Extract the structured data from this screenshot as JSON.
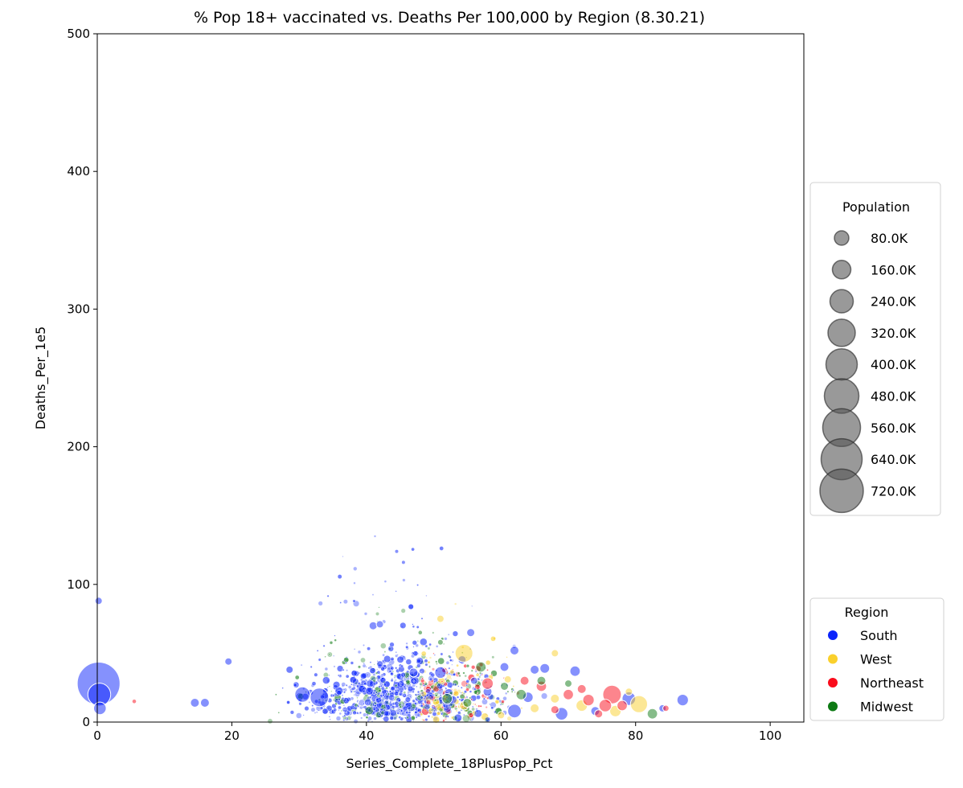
{
  "chart_data": {
    "type": "scatter",
    "title": "% Pop 18+ vaccinated vs. Deaths Per 100,000 by Region (8.30.21)",
    "xlabel": "Series_Complete_18PlusPop_Pct",
    "ylabel": "Deaths_Per_1e5",
    "xlim": [
      0,
      105
    ],
    "ylim": [
      0,
      500
    ],
    "xticks": [
      "0",
      "20",
      "40",
      "60",
      "80",
      "100"
    ],
    "yticks": [
      "0",
      "100",
      "200",
      "300",
      "400",
      "500"
    ],
    "grid": false,
    "size_legend": {
      "title": "Population",
      "position": "right",
      "entries": [
        {
          "label": "80.0K",
          "value": 80000
        },
        {
          "label": "160.0K",
          "value": 160000
        },
        {
          "label": "240.0K",
          "value": 240000
        },
        {
          "label": "320.0K",
          "value": 320000
        },
        {
          "label": "400.0K",
          "value": 400000
        },
        {
          "label": "480.0K",
          "value": 480000
        },
        {
          "label": "560.0K",
          "value": 560000
        },
        {
          "label": "640.0K",
          "value": 640000
        },
        {
          "label": "720.0K",
          "value": 720000
        }
      ]
    },
    "color_legend": {
      "title": "Region",
      "position": "lower-right",
      "entries": [
        {
          "label": "South",
          "color": "#0b24fb"
        },
        {
          "label": "West",
          "color": "#fad02c"
        },
        {
          "label": "Northeast",
          "color": "#fa0c1c"
        },
        {
          "label": "Midwest",
          "color": "#0d7a14"
        }
      ]
    },
    "series": [
      {
        "name": "South",
        "color": "#0b24fb",
        "points": [
          {
            "x": 0.2,
            "y": 28,
            "pop": 700000
          },
          {
            "x": 0.2,
            "y": 88,
            "pop": 20000
          },
          {
            "x": 0.3,
            "y": 20,
            "pop": 200000
          },
          {
            "x": 0.4,
            "y": 10,
            "pop": 60000
          },
          {
            "x": 14.5,
            "y": 14,
            "pop": 30000
          },
          {
            "x": 16,
            "y": 14,
            "pop": 30000
          },
          {
            "x": 19.5,
            "y": 44,
            "pop": 20000
          },
          {
            "x": 30.5,
            "y": 20,
            "pop": 90000
          },
          {
            "x": 33,
            "y": 18,
            "pop": 130000
          },
          {
            "x": 41,
            "y": 70,
            "pop": 25000
          },
          {
            "x": 42,
            "y": 71,
            "pop": 20000
          },
          {
            "x": 44.5,
            "y": 124,
            "pop": 6000
          },
          {
            "x": 45.5,
            "y": 116,
            "pop": 6000
          },
          {
            "x": 47,
            "y": 36,
            "pop": 30000
          },
          {
            "x": 51,
            "y": 36,
            "pop": 50000
          },
          {
            "x": 55.5,
            "y": 65,
            "pop": 25000
          },
          {
            "x": 62,
            "y": 52,
            "pop": 30000
          },
          {
            "x": 60.5,
            "y": 40,
            "pop": 30000
          },
          {
            "x": 65,
            "y": 38,
            "pop": 30000
          },
          {
            "x": 66.5,
            "y": 39,
            "pop": 35000
          },
          {
            "x": 71,
            "y": 37,
            "pop": 40000
          },
          {
            "x": 62,
            "y": 8,
            "pop": 70000
          },
          {
            "x": 69,
            "y": 6,
            "pop": 60000
          },
          {
            "x": 79,
            "y": 17,
            "pop": 70000
          },
          {
            "x": 87,
            "y": 16,
            "pop": 50000
          },
          {
            "x": 84,
            "y": 10,
            "pop": 20000
          },
          {
            "x": 58,
            "y": 22,
            "pop": 30000
          },
          {
            "x": 64,
            "y": 18,
            "pop": 40000
          },
          {
            "x": 74,
            "y": 8,
            "pop": 30000
          },
          {
            "x": 56,
            "y": 30,
            "pop": 20000
          }
        ]
      },
      {
        "name": "West",
        "color": "#fad02c",
        "points": [
          {
            "x": 54.5,
            "y": 50,
            "pop": 120000
          },
          {
            "x": 51,
            "y": 75,
            "pop": 20000
          },
          {
            "x": 68,
            "y": 50,
            "pop": 20000
          },
          {
            "x": 80.5,
            "y": 13,
            "pop": 110000
          },
          {
            "x": 77,
            "y": 8,
            "pop": 50000
          },
          {
            "x": 72,
            "y": 12,
            "pop": 50000
          },
          {
            "x": 65,
            "y": 10,
            "pop": 30000
          },
          {
            "x": 79,
            "y": 22,
            "pop": 20000
          },
          {
            "x": 68,
            "y": 17,
            "pop": 30000
          },
          {
            "x": 54.5,
            "y": 12,
            "pop": 30000
          },
          {
            "x": 61,
            "y": 31,
            "pop": 20000
          },
          {
            "x": 60,
            "y": 5,
            "pop": 20000
          }
        ]
      },
      {
        "name": "Northeast",
        "color": "#fa0c1c",
        "points": [
          {
            "x": 76.5,
            "y": 20,
            "pop": 130000
          },
          {
            "x": 75.5,
            "y": 12,
            "pop": 60000
          },
          {
            "x": 73,
            "y": 16,
            "pop": 50000
          },
          {
            "x": 70,
            "y": 20,
            "pop": 40000
          },
          {
            "x": 72,
            "y": 24,
            "pop": 30000
          },
          {
            "x": 66,
            "y": 26,
            "pop": 40000
          },
          {
            "x": 63.5,
            "y": 30,
            "pop": 30000
          },
          {
            "x": 58,
            "y": 28,
            "pop": 50000
          },
          {
            "x": 5.5,
            "y": 15,
            "pop": 8000
          },
          {
            "x": 78,
            "y": 12,
            "pop": 40000
          },
          {
            "x": 68,
            "y": 9,
            "pop": 25000
          },
          {
            "x": 74.5,
            "y": 6,
            "pop": 25000
          },
          {
            "x": 84.5,
            "y": 10,
            "pop": 15000
          }
        ]
      },
      {
        "name": "Midwest",
        "color": "#0d7a14",
        "points": [
          {
            "x": 57,
            "y": 40,
            "pop": 40000
          },
          {
            "x": 63,
            "y": 20,
            "pop": 40000
          },
          {
            "x": 66,
            "y": 30,
            "pop": 30000
          },
          {
            "x": 52,
            "y": 17,
            "pop": 40000
          },
          {
            "x": 82.5,
            "y": 6,
            "pop": 40000
          },
          {
            "x": 60.5,
            "y": 26,
            "pop": 25000
          },
          {
            "x": 55,
            "y": 14,
            "pop": 30000
          },
          {
            "x": 48,
            "y": 65,
            "pop": 8000
          },
          {
            "x": 51,
            "y": 58,
            "pop": 12000
          },
          {
            "x": 70,
            "y": 28,
            "pop": 20000
          }
        ]
      }
    ]
  }
}
